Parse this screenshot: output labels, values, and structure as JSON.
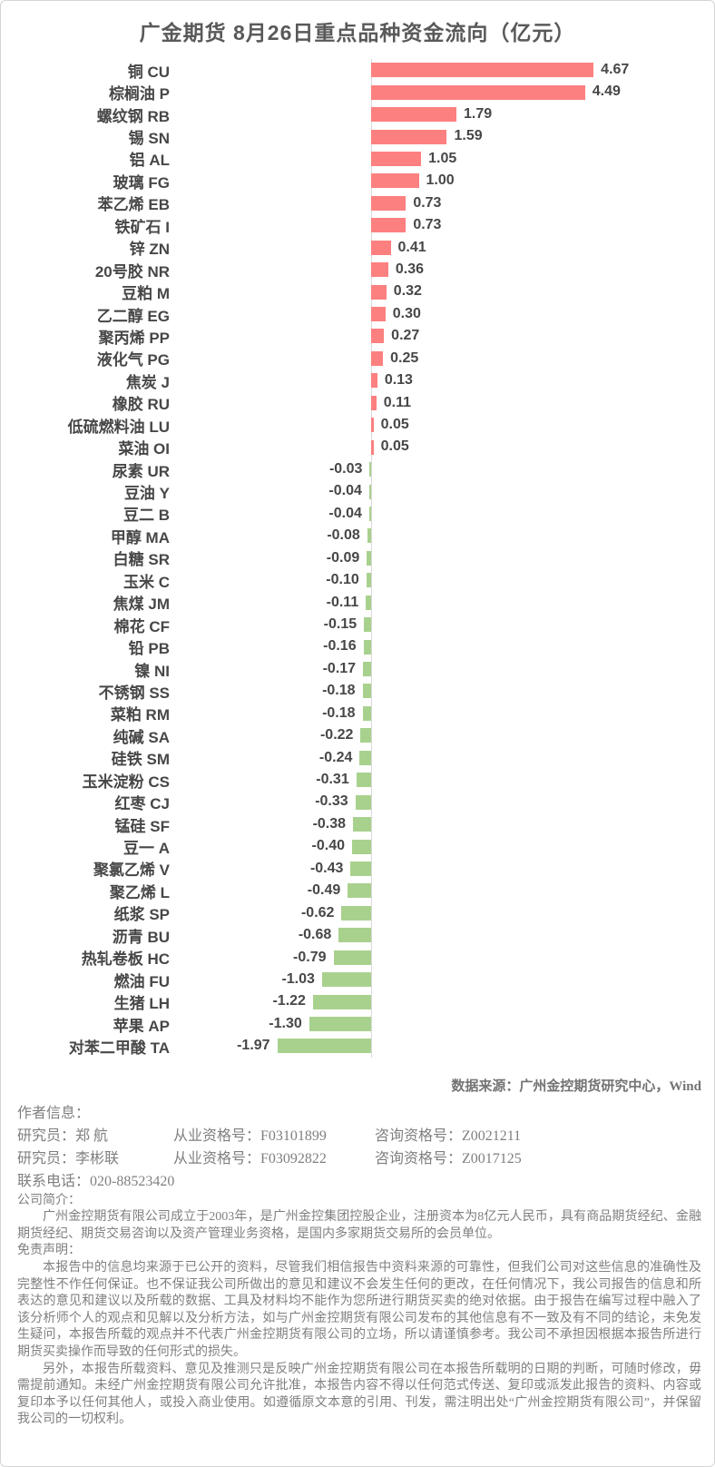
{
  "title": "广金期货 8月26日重点品种资金流向（亿元）",
  "chart_data": {
    "type": "bar",
    "orientation": "horizontal",
    "title": "广金期货 8月26日重点品种资金流向（亿元）",
    "unit": "亿元",
    "grid": false,
    "legend": false,
    "xlim": [
      -2.5,
      5.5
    ],
    "positive_color": "#FC807F",
    "negative_color": "#A9D18E",
    "axis_color": "#D9D9D9",
    "categories": [
      "铜 CU",
      "棕榈油 P",
      "螺纹钢 RB",
      "锡 SN",
      "铝 AL",
      "玻璃 FG",
      "苯乙烯 EB",
      "铁矿石 I",
      "锌 ZN",
      "20号胶 NR",
      "豆粕 M",
      "乙二醇 EG",
      "聚丙烯 PP",
      "液化气 PG",
      "焦炭 J",
      "橡胶 RU",
      "低硫燃料油 LU",
      "菜油 OI",
      "尿素 UR",
      "豆油 Y",
      "豆二 B",
      "甲醇 MA",
      "白糖 SR",
      "玉米 C",
      "焦煤 JM",
      "棉花 CF",
      "铅 PB",
      "镍 NI",
      "不锈钢 SS",
      "菜粕 RM",
      "纯碱 SA",
      "硅铁 SM",
      "玉米淀粉 CS",
      "红枣 CJ",
      "锰硅 SF",
      "豆一 A",
      "聚氯乙烯 V",
      "聚乙烯 L",
      "纸浆 SP",
      "沥青 BU",
      "热轧卷板 HC",
      "燃油 FU",
      "生猪 LH",
      "苹果 AP",
      "对苯二甲酸 TA"
    ],
    "values": [
      4.67,
      4.49,
      1.79,
      1.59,
      1.05,
      1.0,
      0.73,
      0.73,
      0.41,
      0.36,
      0.32,
      0.3,
      0.27,
      0.25,
      0.13,
      0.11,
      0.05,
      0.05,
      -0.03,
      -0.04,
      -0.04,
      -0.08,
      -0.09,
      -0.1,
      -0.11,
      -0.15,
      -0.16,
      -0.17,
      -0.18,
      -0.18,
      -0.22,
      -0.24,
      -0.31,
      -0.33,
      -0.38,
      -0.4,
      -0.43,
      -0.49,
      -0.62,
      -0.68,
      -0.79,
      -1.03,
      -1.22,
      -1.3,
      -1.97
    ]
  },
  "source_note": "数据来源：广州金控期货研究中心，Wind",
  "footer": {
    "author_section_title": "作者信息：",
    "researchers": [
      {
        "role_name": "研究员：郑 航",
        "practice_no": "从业资格号：F03101899",
        "consult_no": "咨询资格号：Z0021211"
      },
      {
        "role_name": "研究员：李彬联",
        "practice_no": "从业资格号：F03092822",
        "consult_no": "咨询资格号：Z0017125"
      }
    ],
    "phone": "联系电话：020-88523420",
    "company_intro_title": "公司简介：",
    "company_intro": "广州金控期货有限公司成立于2003年，是广州金控集团控股企业，注册资本为8亿元人民币，具有商品期货经纪、金融期货经纪、期货交易咨询以及资产管理业务资格，是国内多家期货交易所的会员单位。",
    "disclaimer_title": "免责声明：",
    "disclaimer_paragraphs": [
      "本报告中的信息均来源于已公开的资料，尽管我们相信报告中资料来源的可靠性，但我们公司对这些信息的准确性及完整性不作任何保证。也不保证我公司所做出的意见和建议不会发生任何的更改，在任何情况下，我公司报告的信息和所表达的意见和建议以及所载的数据、工具及材料均不能作为您所进行期货买卖的绝对依据。由于报告在编写过程中融入了该分析师个人的观点和见解以及分析方法，如与广州金控期货有限公司发布的其他信息有不一致及有不同的结论，未免发生疑问，本报告所载的观点并不代表广州金控期货有限公司的立场，所以请谨慎参考。我公司不承担因根据本报告所进行期货买卖操作而导致的任何形式的损失。",
      "另外，本报告所载资料、意见及推测只是反映广州金控期货有限公司在本报告所载明的日期的判断，可随时修改，毋需提前通知。未经广州金控期货有限公司允许批准，本报告内容不得以任何范式传送、复印或派发此报告的资料、内容或复印本予以任何其他人，或投入商业使用。如遵循原文本意的引用、刊发，需注明出处“广州金控期货有限公司”，并保留我公司的一切权利。"
    ]
  }
}
